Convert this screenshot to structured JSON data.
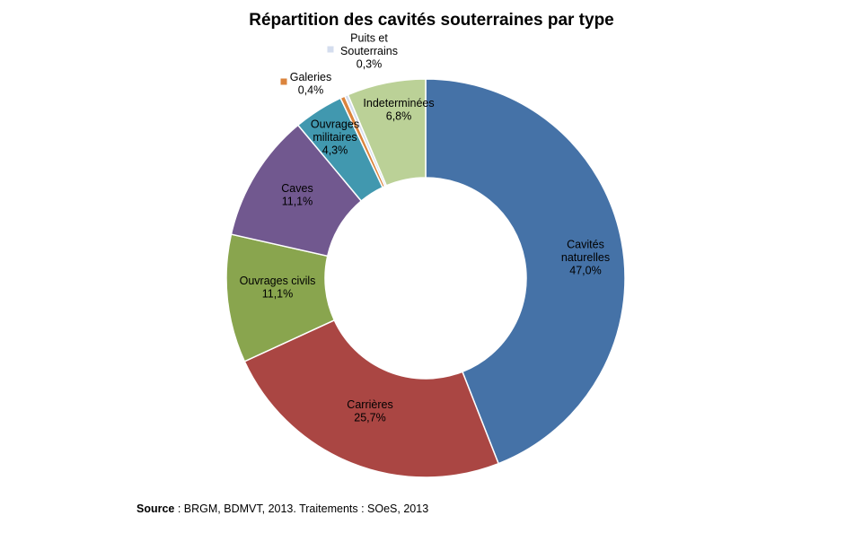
{
  "chart_data": {
    "type": "pie",
    "style": "donut",
    "title": "Répartition  des cavités souterraines par type",
    "start": "top",
    "direction": "clockwise",
    "slices": [
      {
        "label_lines": [
          "Cavités",
          "naturelles"
        ],
        "value": 47.0,
        "value_label": "47,0%",
        "color": "#4572A7"
      },
      {
        "label_lines": [
          "Carrières"
        ],
        "value": 25.7,
        "value_label": "25,7%",
        "color": "#AA4643"
      },
      {
        "label_lines": [
          "Ouvrages  civils"
        ],
        "value": 11.1,
        "value_label": "11,1%",
        "color": "#89A54E"
      },
      {
        "label_lines": [
          "Caves"
        ],
        "value": 11.1,
        "value_label": "11,1%",
        "color": "#71588F"
      },
      {
        "label_lines": [
          "Ouvrages",
          "militaires"
        ],
        "value": 4.3,
        "value_label": "4,3%",
        "color": "#4198AF"
      },
      {
        "label_lines": [
          "Galeries"
        ],
        "value": 0.4,
        "value_label": "0,4%",
        "color": "#DB843D"
      },
      {
        "label_lines": [
          "Puits et",
          "Souterrains"
        ],
        "value": 0.3,
        "value_label": "0,3%",
        "color": "#D4DDEE"
      },
      {
        "label_lines": [
          "Indeterminées"
        ],
        "value": 6.8,
        "value_label": "6,8%",
        "color": "#BBD197"
      }
    ]
  },
  "source": {
    "prefix": "Source",
    "text": " : BRGM,  BDMVT, 2013. Traitements  : SOeS, 2013"
  }
}
